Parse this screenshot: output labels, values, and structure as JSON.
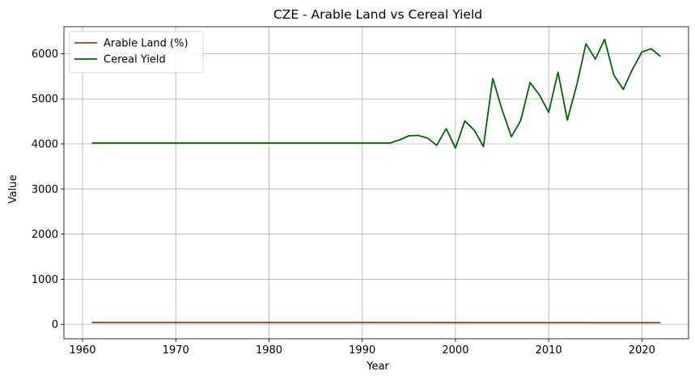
{
  "chart_data": {
    "type": "line",
    "title": "CZE - Arable Land vs Cereal Yield",
    "xlabel": "Year",
    "ylabel": "Value",
    "xlim": [
      1958.0,
      2025.0
    ],
    "ylim": [
      -320,
      6600
    ],
    "xticks": [
      1960,
      1970,
      1980,
      1990,
      2000,
      2010,
      2020
    ],
    "yticks": [
      0,
      1000,
      2000,
      3000,
      4000,
      5000,
      6000
    ],
    "grid": true,
    "legend_position": "top-left",
    "series": [
      {
        "name": "Arable Land (%)",
        "color": "#8B4513",
        "x": [
          1961,
          1962,
          1963,
          1964,
          1965,
          1966,
          1967,
          1968,
          1969,
          1970,
          1971,
          1972,
          1973,
          1974,
          1975,
          1976,
          1977,
          1978,
          1979,
          1980,
          1981,
          1982,
          1983,
          1984,
          1985,
          1986,
          1987,
          1988,
          1989,
          1990,
          1991,
          1992,
          1993,
          1994,
          1995,
          1996,
          1997,
          1998,
          1999,
          2000,
          2001,
          2002,
          2003,
          2004,
          2005,
          2006,
          2007,
          2008,
          2009,
          2010,
          2011,
          2012,
          2013,
          2014,
          2015,
          2016,
          2017,
          2018,
          2019,
          2020,
          2021,
          2022
        ],
        "y": [
          42,
          42,
          42,
          42,
          42,
          42,
          42,
          42,
          42,
          42,
          42,
          42,
          42,
          42,
          42,
          42,
          42,
          42,
          42,
          42,
          42,
          42,
          42,
          42,
          42,
          42,
          42,
          42,
          42,
          42,
          42,
          42,
          42,
          42,
          41,
          41,
          41,
          41,
          40,
          40,
          40,
          39,
          39,
          39,
          38,
          38,
          38,
          38,
          38,
          38,
          38,
          38,
          38,
          38,
          37,
          37,
          37,
          37,
          37,
          37,
          37,
          37
        ]
      },
      {
        "name": "Cereal Yield",
        "color": "#006400",
        "x": [
          1961,
          1962,
          1963,
          1964,
          1965,
          1966,
          1967,
          1968,
          1969,
          1970,
          1971,
          1972,
          1973,
          1974,
          1975,
          1976,
          1977,
          1978,
          1979,
          1980,
          1981,
          1982,
          1983,
          1984,
          1985,
          1986,
          1987,
          1988,
          1989,
          1990,
          1991,
          1992,
          1993,
          1994,
          1995,
          1996,
          1997,
          1998,
          1999,
          2000,
          2001,
          2002,
          2003,
          2004,
          2005,
          2006,
          2007,
          2008,
          2009,
          2010,
          2011,
          2012,
          2013,
          2014,
          2015,
          2016,
          2017,
          2018,
          2019,
          2020,
          2021,
          2022
        ],
        "y": [
          4020,
          4020,
          4020,
          4020,
          4020,
          4020,
          4020,
          4020,
          4020,
          4020,
          4020,
          4020,
          4020,
          4020,
          4020,
          4020,
          4020,
          4020,
          4020,
          4020,
          4020,
          4020,
          4020,
          4020,
          4020,
          4020,
          4020,
          4020,
          4020,
          4020,
          4020,
          4020,
          4020,
          4090,
          4180,
          4190,
          4130,
          3970,
          4340,
          3910,
          4510,
          4310,
          3940,
          5450,
          4760,
          4160,
          4520,
          5360,
          5090,
          4700,
          5590,
          4530,
          5300,
          6220,
          5880,
          6320,
          5520,
          5210,
          5660,
          6040,
          6110,
          5940
        ]
      }
    ]
  }
}
